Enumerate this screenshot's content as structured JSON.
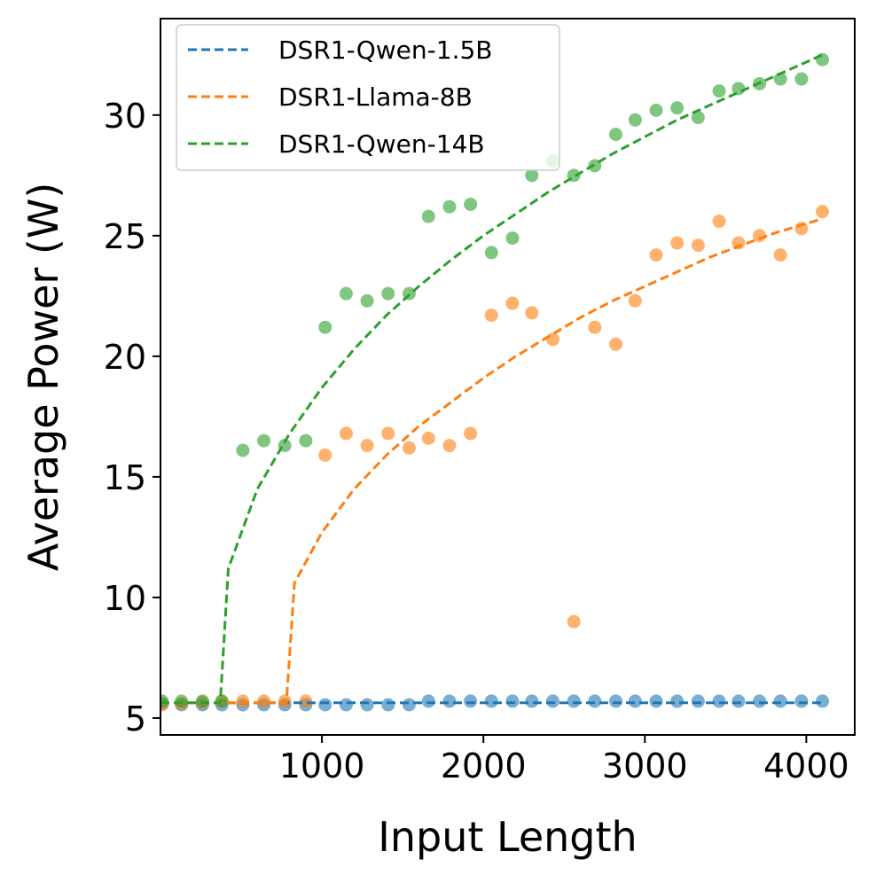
{
  "chart_data": {
    "type": "scatter",
    "title": "",
    "xlabel": "Input Length",
    "ylabel": "Average Power (W)",
    "xlim": [
      0,
      4300
    ],
    "ylim": [
      4.3,
      34
    ],
    "xticks": [
      1000,
      2000,
      3000,
      4000
    ],
    "yticks": [
      5,
      10,
      15,
      20,
      25,
      30
    ],
    "legend_location": "upper-left",
    "x": [
      10,
      130,
      260,
      380,
      510,
      640,
      770,
      900,
      1020,
      1150,
      1280,
      1410,
      1540,
      1660,
      1790,
      1920,
      2050,
      2180,
      2300,
      2430,
      2560,
      2690,
      2820,
      2940,
      3070,
      3200,
      3330,
      3460,
      3580,
      3710,
      3840,
      3970,
      4100
    ],
    "series": [
      {
        "name": "DSR1-Qwen-1.5B",
        "color": "#1f77b4",
        "points": [
          5.6,
          5.55,
          5.55,
          5.55,
          5.55,
          5.55,
          5.55,
          5.55,
          5.55,
          5.55,
          5.55,
          5.55,
          5.55,
          5.7,
          5.7,
          5.7,
          5.7,
          5.7,
          5.7,
          5.7,
          5.7,
          5.7,
          5.7,
          5.7,
          5.7,
          5.7,
          5.7,
          5.7,
          5.7,
          5.7,
          5.7,
          5.7,
          5.7
        ],
        "fit": [
          [
            0,
            5.63
          ],
          [
            4100,
            5.63
          ]
        ]
      },
      {
        "name": "DSR1-Llama-8B",
        "color": "#ff7f0e",
        "points_x": [
          10,
          130,
          260,
          380,
          510,
          640,
          770,
          900,
          1020,
          1150,
          1280,
          1410,
          1540,
          1660,
          1790,
          1920,
          2050,
          2180,
          2300,
          2430,
          2560,
          2690,
          2820,
          2940,
          3070,
          3200,
          3330,
          3460,
          3580,
          3710,
          3840,
          3970,
          4100
        ],
        "points": [
          5.55,
          5.6,
          5.65,
          5.7,
          5.7,
          5.7,
          5.7,
          5.7,
          15.9,
          16.8,
          16.3,
          16.8,
          16.2,
          16.6,
          16.3,
          16.8,
          21.7,
          22.2,
          21.8,
          20.7,
          9.0,
          21.2,
          20.5,
          22.3,
          24.2,
          24.7,
          24.6,
          25.6,
          24.7,
          25.0,
          24.2,
          25.3,
          26.0
        ],
        "fit": [
          [
            0,
            5.63
          ],
          [
            780,
            5.63
          ],
          [
            830,
            10.6
          ],
          [
            1000,
            12.7
          ],
          [
            1200,
            14.5
          ],
          [
            1400,
            15.9
          ],
          [
            1600,
            17.1
          ],
          [
            1800,
            18.1
          ],
          [
            2000,
            19.1
          ],
          [
            2200,
            20.0
          ],
          [
            2400,
            20.8
          ],
          [
            2600,
            21.6
          ],
          [
            2800,
            22.3
          ],
          [
            3000,
            22.9
          ],
          [
            3200,
            23.5
          ],
          [
            3400,
            24.1
          ],
          [
            3600,
            24.6
          ],
          [
            3800,
            25.1
          ],
          [
            4000,
            25.5
          ],
          [
            4100,
            25.7
          ]
        ]
      },
      {
        "name": "DSR1-Qwen-14B",
        "color": "#2ca02c",
        "points": [
          5.7,
          5.7,
          5.7,
          5.7,
          16.1,
          16.5,
          16.3,
          16.5,
          21.2,
          22.6,
          22.3,
          22.6,
          22.6,
          25.8,
          26.2,
          26.3,
          24.3,
          24.9,
          27.5,
          28.1,
          27.5,
          27.9,
          29.2,
          29.8,
          30.2,
          30.3,
          29.9,
          31.0,
          31.1,
          31.3,
          31.5,
          31.5,
          32.3
        ],
        "fit": [
          [
            0,
            5.63
          ],
          [
            370,
            5.63
          ],
          [
            420,
            11.2
          ],
          [
            600,
            14.5
          ],
          [
            800,
            16.8
          ],
          [
            1000,
            18.7
          ],
          [
            1200,
            20.3
          ],
          [
            1400,
            21.7
          ],
          [
            1600,
            22.9
          ],
          [
            1800,
            24.0
          ],
          [
            2000,
            25.0
          ],
          [
            2200,
            25.9
          ],
          [
            2400,
            26.8
          ],
          [
            2600,
            27.6
          ],
          [
            2800,
            28.4
          ],
          [
            3000,
            29.1
          ],
          [
            3200,
            29.8
          ],
          [
            3400,
            30.4
          ],
          [
            3600,
            31.0
          ],
          [
            3800,
            31.6
          ],
          [
            4000,
            32.2
          ],
          [
            4100,
            32.5
          ]
        ]
      }
    ]
  }
}
